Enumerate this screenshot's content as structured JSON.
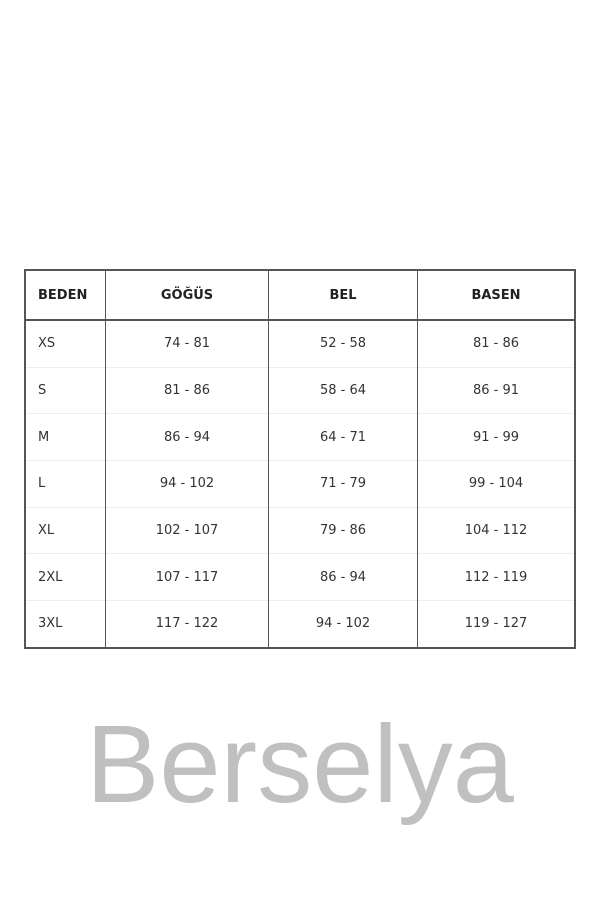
{
  "size_table": {
    "headers": [
      "BEDEN",
      "GÖĞÜS",
      "BEL",
      "BASEN"
    ],
    "rows": [
      [
        "XS",
        "74 - 81",
        "52 - 58",
        "81 - 86"
      ],
      [
        "S",
        "81 - 86",
        "58 - 64",
        "86 - 91"
      ],
      [
        "M",
        "86 - 94",
        "64 - 71",
        "91 - 99"
      ],
      [
        "L",
        "94 - 102",
        "71 - 79",
        "99 - 104"
      ],
      [
        "XL",
        "102 - 107",
        "79 - 86",
        "104 - 112"
      ],
      [
        "2XL",
        "107 - 117",
        "86 - 94",
        "112 - 119"
      ],
      [
        "3XL",
        "117 - 122",
        "94 - 102",
        "119 - 127"
      ]
    ]
  },
  "watermark": {
    "text": "Berselya"
  }
}
